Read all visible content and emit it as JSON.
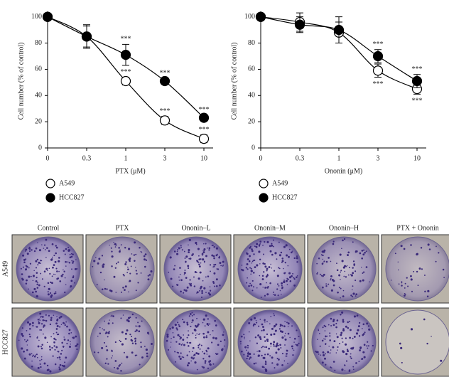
{
  "chart_data": [
    {
      "type": "line",
      "x_label": "PTX (μM)",
      "y_label": "Cell number (% of control)",
      "categories": [
        "0",
        "0.3",
        "1",
        "3",
        "10"
      ],
      "series": [
        {
          "name": "A549",
          "color": "#ffffff",
          "values": [
            100,
            85,
            51,
            21,
            7
          ],
          "errors": [
            1,
            9,
            3,
            3,
            3
          ],
          "significance": [
            null,
            null,
            "***",
            "***",
            "***"
          ]
        },
        {
          "name": "HCC827",
          "color": "#000000",
          "values": [
            100,
            85,
            71,
            51,
            23
          ],
          "errors": [
            1,
            8,
            8,
            2,
            2
          ],
          "significance": [
            null,
            null,
            "***",
            "***",
            "***"
          ]
        }
      ],
      "ylim": [
        0,
        102
      ],
      "yticks": [
        0,
        20,
        40,
        60,
        80,
        100
      ]
    },
    {
      "type": "line",
      "x_label": "Ononin (μM)",
      "y_label": "Cell number (% of control)",
      "categories": [
        "0",
        "0.3",
        "1",
        "3",
        "10"
      ],
      "series": [
        {
          "name": "A549",
          "color": "#ffffff",
          "values": [
            100,
            96,
            88,
            59,
            45
          ],
          "errors": [
            1,
            7,
            8,
            5,
            4
          ],
          "significance": [
            null,
            null,
            null,
            "***",
            "***"
          ]
        },
        {
          "name": "HCC827",
          "color": "#000000",
          "values": [
            100,
            94,
            90,
            70,
            51
          ],
          "errors": [
            1,
            6,
            10,
            5,
            5
          ],
          "significance": [
            null,
            null,
            null,
            "***",
            "***"
          ]
        }
      ],
      "ylim": [
        0,
        102
      ],
      "yticks": [
        0,
        20,
        40,
        60,
        80,
        100
      ]
    }
  ],
  "colony_assay": {
    "columns": [
      "Control",
      "PTX",
      "Ononin–L",
      "Ononin–M",
      "Ononin–H",
      "PTX + Ononin"
    ],
    "rows": [
      "A549",
      "HCC827"
    ]
  }
}
